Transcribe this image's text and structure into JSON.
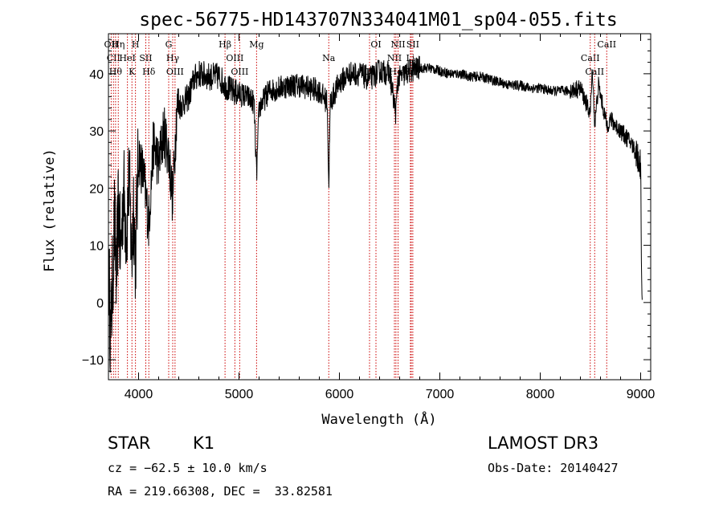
{
  "chart_data": {
    "type": "line",
    "title": "spec-56775-HD143707N334041M01_sp04-055.fits",
    "xlabel": "Wavelength (Å)",
    "ylabel": "Flux (relative)",
    "xlim": [
      3700,
      9100
    ],
    "ylim": [
      -13.5,
      47
    ],
    "x_ticks": [
      4000,
      5000,
      6000,
      7000,
      8000,
      9000
    ],
    "y_ticks": [
      -10,
      0,
      10,
      20,
      30,
      40
    ],
    "line_color": "#000000",
    "marker_color": "#cc0000",
    "spectrum_anchors": [
      [
        3705,
        5
      ],
      [
        3720,
        -6
      ],
      [
        3740,
        3
      ],
      [
        3760,
        14
      ],
      [
        3780,
        4
      ],
      [
        3800,
        18
      ],
      [
        3820,
        8
      ],
      [
        3850,
        20
      ],
      [
        3880,
        12
      ],
      [
        3905,
        22
      ],
      [
        3933,
        7
      ],
      [
        3950,
        18
      ],
      [
        3968,
        8
      ],
      [
        4000,
        26
      ],
      [
        4050,
        22
      ],
      [
        4101,
        14
      ],
      [
        4150,
        28
      ],
      [
        4200,
        24
      ],
      [
        4250,
        30
      ],
      [
        4300,
        26
      ],
      [
        4340,
        18
      ],
      [
        4380,
        34
      ],
      [
        4450,
        35
      ],
      [
        4500,
        36
      ],
      [
        4550,
        39
      ],
      [
        4600,
        40
      ],
      [
        4700,
        39.5
      ],
      [
        4800,
        39.5
      ],
      [
        4861,
        38
      ],
      [
        4920,
        37
      ],
      [
        5000,
        36.5
      ],
      [
        5080,
        36
      ],
      [
        5150,
        35
      ],
      [
        5175,
        22
      ],
      [
        5200,
        34
      ],
      [
        5300,
        37
      ],
      [
        5400,
        37.5
      ],
      [
        5500,
        38
      ],
      [
        5600,
        38
      ],
      [
        5700,
        37.5
      ],
      [
        5800,
        37
      ],
      [
        5880,
        35
      ],
      [
        5893,
        20
      ],
      [
        5910,
        35
      ],
      [
        6000,
        38.5
      ],
      [
        6100,
        40
      ],
      [
        6200,
        40
      ],
      [
        6300,
        39
      ],
      [
        6400,
        40.5
      ],
      [
        6500,
        40
      ],
      [
        6563,
        33
      ],
      [
        6580,
        39
      ],
      [
        6700,
        40.5
      ],
      [
        6800,
        41
      ],
      [
        6900,
        41
      ],
      [
        7000,
        40.5
      ],
      [
        7100,
        40
      ],
      [
        7200,
        40
      ],
      [
        7300,
        39.5
      ],
      [
        7400,
        39.5
      ],
      [
        7500,
        39
      ],
      [
        7600,
        38.5
      ],
      [
        7700,
        38
      ],
      [
        7800,
        38
      ],
      [
        7900,
        37.5
      ],
      [
        8000,
        37.5
      ],
      [
        8100,
        37
      ],
      [
        8200,
        37
      ],
      [
        8300,
        37
      ],
      [
        8400,
        37.5
      ],
      [
        8498,
        33
      ],
      [
        8520,
        41
      ],
      [
        8542,
        31
      ],
      [
        8580,
        38
      ],
      [
        8662,
        31
      ],
      [
        8700,
        32
      ],
      [
        8800,
        30
      ],
      [
        8900,
        28
      ],
      [
        8960,
        26
      ],
      [
        9000,
        24
      ],
      [
        9010,
        5
      ],
      [
        9015,
        0
      ]
    ],
    "emission_lines": [
      {
        "wavelength": 3727,
        "label": "OII"
      },
      {
        "wavelength": 3750,
        "label": "CII"
      },
      {
        "wavelength": 3771,
        "label": "Hθ"
      },
      {
        "wavelength": 3798,
        "label": "Hη"
      },
      {
        "wavelength": 3889,
        "label": "HeI"
      },
      {
        "wavelength": 3934,
        "label": "K"
      },
      {
        "wavelength": 3969,
        "label": "H"
      },
      {
        "wavelength": 4072,
        "label": "SII"
      },
      {
        "wavelength": 4102,
        "label": "Hδ"
      },
      {
        "wavelength": 4300,
        "label": "G"
      },
      {
        "wavelength": 4340,
        "label": "Hγ"
      },
      {
        "wavelength": 4363,
        "label": "OIII"
      },
      {
        "wavelength": 4861,
        "label": "Hβ"
      },
      {
        "wavelength": 4959,
        "label": "OIII"
      },
      {
        "wavelength": 5007,
        "label": "OIII"
      },
      {
        "wavelength": 5175,
        "label": "Mg"
      },
      {
        "wavelength": 5894,
        "label": "Na"
      },
      {
        "wavelength": 6300,
        "label": "OI"
      },
      {
        "wavelength": 6364,
        "label": "OI"
      },
      {
        "wavelength": 6548,
        "label": "NII"
      },
      {
        "wavelength": 6563,
        "label": "Hα"
      },
      {
        "wavelength": 6584,
        "label": "NII"
      },
      {
        "wavelength": 6707,
        "label": "Li"
      },
      {
        "wavelength": 6716,
        "label": "SII"
      },
      {
        "wavelength": 6731,
        "label": "SII"
      },
      {
        "wavelength": 8498,
        "label": "CaII"
      },
      {
        "wavelength": 8542,
        "label": "CaII"
      },
      {
        "wavelength": 8662,
        "label": "CaII"
      }
    ]
  },
  "info": {
    "class_label": "STAR",
    "subclass": "K1",
    "redshift_line": "cz = −62.5 ± 10.0 km/s",
    "coords_line": "RA = 219.66308, DEC =  33.82581",
    "survey": "LAMOST DR3",
    "obs_date": "Obs-Date: 20140427"
  }
}
